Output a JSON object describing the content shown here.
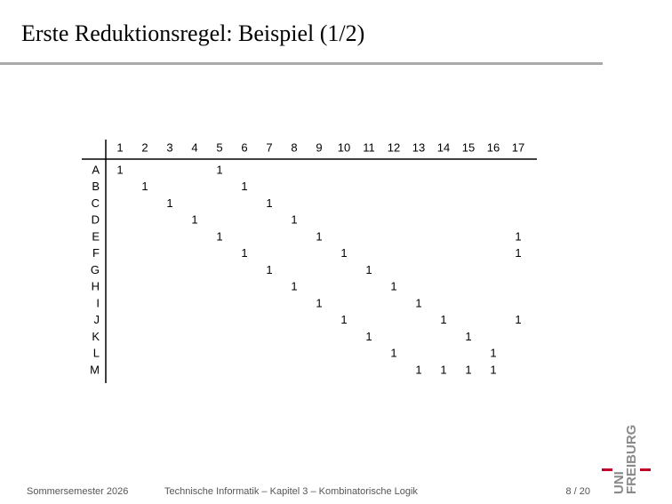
{
  "header": {
    "title": "Erste Reduktionsregel: Beispiel (1/2)"
  },
  "table": {
    "columns": [
      1,
      2,
      3,
      4,
      5,
      6,
      7,
      8,
      9,
      10,
      11,
      12,
      13,
      14,
      15,
      16,
      17
    ],
    "rows": [
      {
        "label": "A",
        "cells": [
          1,
          null,
          null,
          null,
          1,
          null,
          null,
          null,
          null,
          null,
          null,
          null,
          null,
          null,
          null,
          null,
          null
        ]
      },
      {
        "label": "B",
        "cells": [
          null,
          1,
          null,
          null,
          null,
          1,
          null,
          null,
          null,
          null,
          null,
          null,
          null,
          null,
          null,
          null,
          null
        ]
      },
      {
        "label": "C",
        "cells": [
          null,
          null,
          1,
          null,
          null,
          null,
          1,
          null,
          null,
          null,
          null,
          null,
          null,
          null,
          null,
          null,
          null
        ]
      },
      {
        "label": "D",
        "cells": [
          null,
          null,
          null,
          1,
          null,
          null,
          null,
          1,
          null,
          null,
          null,
          null,
          null,
          null,
          null,
          null,
          null
        ]
      },
      {
        "label": "E",
        "cells": [
          null,
          null,
          null,
          null,
          1,
          null,
          null,
          null,
          1,
          null,
          null,
          null,
          null,
          null,
          null,
          null,
          1
        ]
      },
      {
        "label": "F",
        "cells": [
          null,
          null,
          null,
          null,
          null,
          1,
          null,
          null,
          null,
          1,
          null,
          null,
          null,
          null,
          null,
          null,
          1
        ]
      },
      {
        "label": "G",
        "cells": [
          null,
          null,
          null,
          null,
          null,
          null,
          1,
          null,
          null,
          null,
          1,
          null,
          null,
          null,
          null,
          null,
          null
        ]
      },
      {
        "label": "H",
        "cells": [
          null,
          null,
          null,
          null,
          null,
          null,
          null,
          1,
          null,
          null,
          null,
          1,
          null,
          null,
          null,
          null,
          null
        ]
      },
      {
        "label": "I",
        "cells": [
          null,
          null,
          null,
          null,
          null,
          null,
          null,
          null,
          1,
          null,
          null,
          null,
          1,
          null,
          null,
          null,
          null
        ]
      },
      {
        "label": "J",
        "cells": [
          null,
          null,
          null,
          null,
          null,
          null,
          null,
          null,
          null,
          1,
          null,
          null,
          null,
          1,
          null,
          null,
          1
        ]
      },
      {
        "label": "K",
        "cells": [
          null,
          null,
          null,
          null,
          null,
          null,
          null,
          null,
          null,
          null,
          1,
          null,
          null,
          null,
          1,
          null,
          null
        ]
      },
      {
        "label": "L",
        "cells": [
          null,
          null,
          null,
          null,
          null,
          null,
          null,
          null,
          null,
          null,
          null,
          1,
          null,
          null,
          null,
          1,
          null
        ]
      },
      {
        "label": "M",
        "cells": [
          null,
          null,
          null,
          null,
          null,
          null,
          null,
          null,
          null,
          null,
          null,
          null,
          1,
          1,
          1,
          1,
          null
        ]
      }
    ]
  },
  "footer": {
    "term": "Sommersemester 2026",
    "course": "Technische Informatik –  Kapitel 3 – Kombinatorische Logik",
    "page": "8 / 20"
  },
  "logo": {
    "line1": "UNI",
    "line2": "FREIBURG"
  }
}
